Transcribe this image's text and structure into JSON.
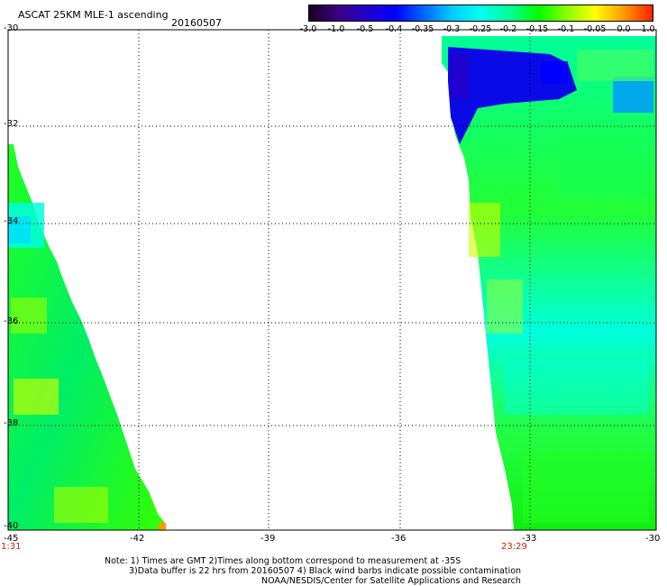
{
  "header": {
    "title": "ASCAT 25KM MLE-1 ascending",
    "date": "20160507"
  },
  "colorbar": {
    "labels": [
      "-3.0",
      "-1.0",
      "-0.5",
      "-0.4",
      "-0.35",
      "-0.3",
      "-0.25",
      "-0.2",
      "-0.15",
      "-0.1",
      "-0.05",
      "0.0",
      "1.0"
    ],
    "gradient": [
      "#1a0020",
      "#3a0080",
      "#2200cc",
      "#0000ff",
      "#0066ff",
      "#00ccff",
      "#00ffee",
      "#00ff99",
      "#00ff00",
      "#88ff00",
      "#ffff00",
      "#ff9900",
      "#ff2200"
    ]
  },
  "axes": {
    "lat_labels": [
      "-30",
      "-32",
      "-34",
      "-36",
      "-38",
      "-40"
    ],
    "lon_labels": [
      "-45",
      "-42",
      "-39",
      "-36",
      "-33",
      "-30"
    ],
    "time_left": "1:31",
    "time_right": "23:29"
  },
  "notes": {
    "line1": "Note: 1) Times are GMT 2)Times along bottom correspond to measurement at -35S",
    "line2": "3)Data buffer is 22 hrs from 20160507 4) Black wind barbs indicate possible contamination",
    "line3": "NOAA/NESDIS/Center for Satellite Applications and Research"
  },
  "colors": {
    "grid": "#000000",
    "time_label": "#cc2200"
  }
}
